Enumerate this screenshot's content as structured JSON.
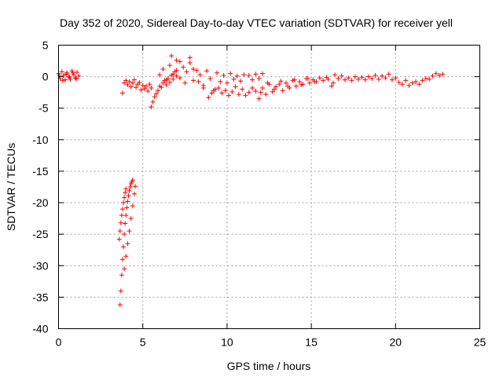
{
  "chart_data": {
    "type": "scatter",
    "title": "Day 352 of 2020, Sidereal Day-to-day VTEC variation (SDTVAR) for receiver yell",
    "xlabel": "GPS time / hours",
    "ylabel": "SDTVAR / TECUs",
    "xlim": [
      0,
      25
    ],
    "ylim": [
      -40,
      5
    ],
    "xticks": [
      "0",
      "5",
      "10",
      "15",
      "20",
      "25"
    ],
    "yticks": [
      "5",
      "0",
      "-5",
      "-10",
      "-15",
      "-20",
      "-25",
      "-30",
      "-35",
      "-40"
    ],
    "grid": true,
    "marker": "+",
    "color": "#ff0000",
    "series": [
      {
        "x": [
          0.0,
          0.1,
          0.2,
          0.3,
          0.4,
          0.5,
          0.6,
          0.7,
          0.8,
          0.9,
          1.0,
          1.1,
          1.2,
          0.05,
          0.25,
          0.45,
          0.65,
          0.85,
          1.05
        ],
        "y": [
          0.5,
          -0.3,
          0.8,
          0.2,
          -0.5,
          0.6,
          0.0,
          -0.4,
          0.9,
          0.3,
          -0.2,
          0.7,
          0.1,
          0.2,
          -0.6,
          0.4,
          -0.1,
          0.6,
          -0.3
        ]
      },
      {
        "x": [
          3.65,
          3.7,
          3.75,
          3.8,
          3.85,
          3.9,
          3.95,
          4.0,
          4.05,
          4.1,
          4.15,
          4.2,
          4.25,
          4.3,
          4.35,
          4.4
        ],
        "y": [
          -36.2,
          -34.0,
          -31.5,
          -29.0,
          -27.0,
          -25.0,
          -23.3,
          -22.0,
          -20.8,
          -19.8,
          -18.9,
          -18.1,
          -17.5,
          -17.0,
          -16.7,
          -16.4
        ]
      },
      {
        "x": [
          3.6,
          3.65,
          3.7,
          3.75,
          3.8,
          3.85,
          3.9,
          3.95,
          4.0
        ],
        "y": [
          -25.8,
          -24.5,
          -23.2,
          -22.0,
          -21.0,
          -20.0,
          -19.2,
          -18.4,
          -17.8
        ]
      },
      {
        "x": [
          3.9,
          4.0,
          4.1,
          4.2,
          4.3,
          4.4,
          4.5,
          4.55
        ],
        "y": [
          -30.5,
          -28.5,
          -26.5,
          -24.5,
          -22.5,
          -20.5,
          -18.6,
          -17.4
        ]
      },
      {
        "x": [
          3.8,
          3.9,
          4.0,
          4.1,
          4.2,
          4.3,
          4.4,
          4.5,
          4.6,
          4.7,
          4.8,
          4.9,
          5.0,
          5.1,
          5.2,
          5.3,
          5.4,
          5.5
        ],
        "y": [
          -2.6,
          -1.0,
          -0.6,
          -1.3,
          -0.8,
          -1.6,
          -1.0,
          -0.5,
          -1.7,
          -1.2,
          -0.9,
          -2.1,
          -1.4,
          -1.9,
          -1.5,
          -2.3,
          -1.2,
          -1.8
        ]
      },
      {
        "x": [
          5.5,
          5.6,
          5.7,
          5.8,
          5.9,
          6.0,
          6.1,
          6.2,
          6.3,
          6.4,
          6.5,
          6.6,
          6.7,
          6.8,
          6.9,
          7.0
        ],
        "y": [
          -4.8,
          -4.0,
          -3.2,
          -2.7,
          -2.2,
          -1.5,
          -1.7,
          -1.0,
          -0.6,
          -1.3,
          -0.3,
          -0.9,
          0.2,
          -0.4,
          0.8,
          0.1
        ]
      },
      {
        "x": [
          6.0,
          6.2,
          6.4,
          6.6,
          6.8,
          7.0,
          7.2,
          7.4,
          7.6,
          7.8,
          8.0,
          8.2,
          8.4,
          8.6,
          8.8,
          9.0,
          9.2,
          9.4,
          9.6,
          9.8,
          10.0,
          10.2,
          10.4,
          10.6,
          10.8,
          11.0
        ],
        "y": [
          0.3,
          1.2,
          -0.5,
          1.8,
          0.4,
          2.6,
          -0.2,
          1.5,
          0.8,
          2.2,
          -0.6,
          1.0,
          0.3,
          -1.4,
          0.9,
          -0.3,
          -2.2,
          0.6,
          -0.8,
          0.2,
          -1.0,
          0.5,
          -0.4,
          0.1,
          -0.7,
          0.3
        ]
      },
      {
        "x": [
          6.7,
          7.0,
          7.2,
          7.5,
          7.8,
          8.0,
          8.3,
          8.6,
          8.9,
          9.1,
          9.3
        ],
        "y": [
          3.3,
          1.0,
          2.4,
          -1.0,
          3.0,
          1.2,
          -0.8,
          -1.8,
          -3.3,
          -2.6,
          -2.0
        ]
      },
      {
        "x": [
          9.5,
          9.7,
          9.9,
          10.1,
          10.3,
          10.5,
          10.7,
          10.9,
          11.1,
          11.3,
          11.5,
          11.7
        ],
        "y": [
          -1.8,
          -2.6,
          -2.2,
          -3.0,
          -2.4,
          -1.6,
          -2.8,
          -2.0,
          -3.0,
          -2.5,
          -1.8,
          -2.3
        ]
      },
      {
        "x": [
          11.3,
          11.5,
          11.7,
          11.9,
          12.1
        ],
        "y": [
          0.2,
          -0.5,
          0.4,
          -0.3,
          0.5
        ]
      },
      {
        "x": [
          11.9,
          12.1,
          12.3,
          12.5,
          12.7,
          12.9,
          13.1,
          13.3,
          13.5,
          13.7,
          13.9,
          14.1,
          14.3,
          14.5,
          14.7,
          14.9,
          15.1,
          15.3,
          15.5,
          15.7,
          15.9,
          16.0
        ],
        "y": [
          -3.5,
          -1.8,
          -2.8,
          -1.2,
          -2.4,
          -1.6,
          -1.2,
          -2.2,
          -1.0,
          -1.8,
          -0.6,
          -1.5,
          -0.8,
          -1.2,
          -0.3,
          -1.0,
          -0.5,
          -0.8,
          -0.2,
          -0.6,
          -0.1,
          -0.4
        ]
      },
      {
        "x": [
          12.0,
          12.4,
          12.8,
          13.2,
          13.6,
          14.0,
          14.4,
          14.8,
          15.2
        ],
        "y": [
          -2.5,
          -1.0,
          -2.0,
          -0.7,
          -1.5,
          -0.5,
          -1.3,
          -0.3,
          -0.8
        ]
      },
      {
        "x": [
          16.2,
          16.3
        ],
        "y": [
          -1.5,
          -1.0
        ]
      },
      {
        "x": [
          16.4,
          16.6,
          16.8,
          17.0,
          17.2,
          17.4,
          17.6,
          17.8,
          18.0,
          18.2,
          18.4,
          18.6,
          18.8,
          19.0,
          19.2,
          19.4,
          19.6,
          19.8,
          20.0,
          20.2,
          20.4,
          20.6,
          20.8,
          21.0,
          21.2,
          21.4,
          21.6,
          21.8,
          22.0,
          22.2,
          22.4,
          22.6,
          22.8
        ],
        "y": [
          0.3,
          -0.3,
          0.1,
          -0.5,
          -0.2,
          -0.6,
          0.0,
          -0.4,
          -0.1,
          -0.5,
          0.0,
          -0.3,
          0.2,
          -0.4,
          0.1,
          -0.2,
          0.4,
          -0.5,
          -0.2,
          -0.9,
          -1.2,
          -0.6,
          -1.4,
          -1.0,
          -0.8,
          -1.2,
          -0.6,
          -0.3,
          -0.4,
          0.1,
          0.5,
          0.2,
          0.4
        ]
      }
    ]
  }
}
